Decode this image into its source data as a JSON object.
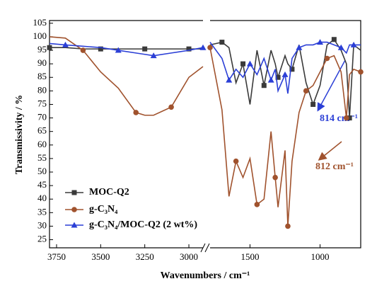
{
  "chart_data": {
    "type": "line",
    "xlabel": "Wavenumbers / cm⁻¹",
    "ylabel": "Transmissivity / %",
    "xlim_segments": [
      [
        3790,
        2920
      ],
      [
        1785,
        710
      ]
    ],
    "xticks": [
      3750,
      3500,
      3250,
      3000,
      1500,
      1000
    ],
    "ylim": [
      22,
      106
    ],
    "yticks": [
      25,
      30,
      35,
      40,
      45,
      50,
      55,
      60,
      65,
      70,
      75,
      80,
      85,
      90,
      95,
      100,
      105
    ],
    "x": [
      3790,
      3700,
      3600,
      3500,
      3400,
      3300,
      3250,
      3200,
      3100,
      3000,
      2920,
      1785,
      1700,
      1650,
      1600,
      1550,
      1500,
      1450,
      1400,
      1350,
      1320,
      1300,
      1250,
      1230,
      1200,
      1150,
      1100,
      1050,
      1000,
      950,
      900,
      850,
      812,
      790,
      760,
      710
    ],
    "series": [
      {
        "name": "MOC-Q2",
        "color": "#3a3a3a",
        "marker": "square",
        "values": [
          96,
          96,
          95.5,
          95.5,
          95.5,
          95.5,
          95.5,
          95.5,
          95.5,
          95.5,
          95.5,
          97,
          98,
          96,
          83,
          90,
          75,
          95,
          82,
          95,
          90,
          85,
          93,
          90,
          88,
          97,
          83,
          75,
          82,
          97,
          99,
          95,
          90,
          70,
          97,
          95
        ]
      },
      {
        "name": "g-C₃N₄",
        "color": "#a0522d",
        "marker": "circle",
        "values": [
          100,
          99.5,
          95,
          87,
          81,
          72,
          71,
          71,
          74,
          85,
          89,
          96,
          73,
          41,
          54,
          48,
          55,
          38,
          40,
          65,
          48,
          37,
          58,
          30,
          54,
          72,
          80,
          82,
          87,
          92,
          93,
          87,
          70,
          86,
          88,
          87
        ]
      },
      {
        "name": "g-C₃N₄/MOC-Q2 (2 wt%)",
        "color": "#2b3fd6",
        "marker": "triangle",
        "values": [
          97.5,
          97,
          96.5,
          96,
          95,
          94,
          93.5,
          93,
          94,
          95,
          96,
          98,
          92,
          84,
          88,
          85,
          90,
          86,
          92,
          84,
          88,
          80,
          86,
          79,
          92,
          96,
          97,
          97,
          98,
          98,
          97,
          96,
          94,
          97,
          97,
          97
        ]
      }
    ],
    "annotations": [
      {
        "text": "814 cm⁻¹",
        "color": "#2b3fd6"
      },
      {
        "text": "812 cm⁻¹",
        "color": "#a0522d"
      }
    ],
    "legend": "lower left"
  }
}
